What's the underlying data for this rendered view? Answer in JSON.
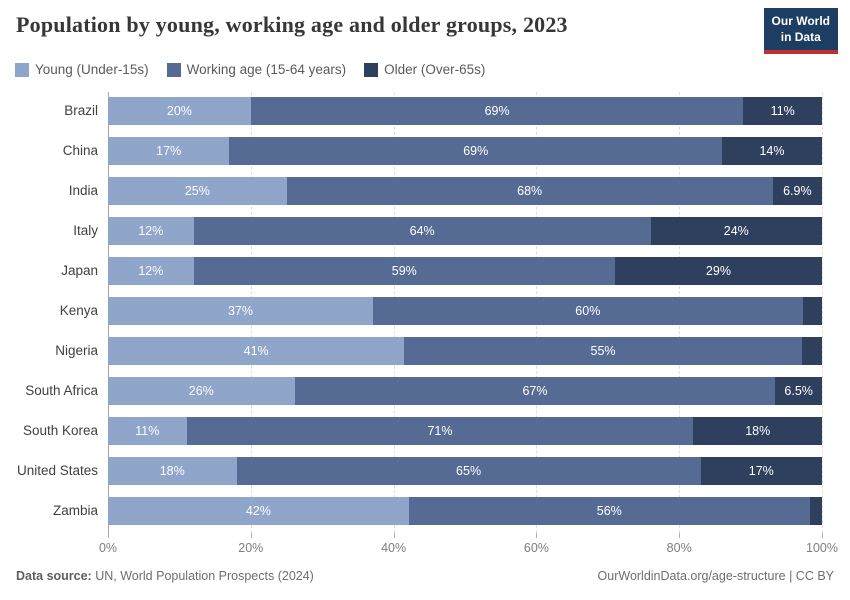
{
  "header": {
    "title": "Population by young, working age and older groups, 2023",
    "logo": {
      "line1": "Our World",
      "line2": "in Data"
    }
  },
  "legend": [
    {
      "key": "young",
      "label": "Young (Under-15s)",
      "color": "#8fa5c9"
    },
    {
      "key": "working",
      "label": "Working age (15-64 years)",
      "color": "#566b93"
    },
    {
      "key": "older",
      "label": "Older (Over-65s)",
      "color": "#2f3f5e"
    }
  ],
  "chart_data": {
    "type": "bar",
    "stacked": true,
    "orientation": "horizontal",
    "title": "Population by young, working age and older groups, 2023",
    "xlabel": "",
    "ylabel": "",
    "xlim": [
      0,
      100
    ],
    "grid": "dashed-vertical",
    "x_ticks": [
      0,
      20,
      40,
      60,
      80,
      100
    ],
    "x_tick_labels": [
      "0%",
      "20%",
      "40%",
      "60%",
      "80%",
      "100%"
    ],
    "categories": [
      "Brazil",
      "China",
      "India",
      "Italy",
      "Japan",
      "Kenya",
      "Nigeria",
      "South Africa",
      "South Korea",
      "United States",
      "Zambia"
    ],
    "series": [
      {
        "name": "Young (Under-15s)",
        "values": [
          20,
          17,
          25,
          12,
          12,
          37,
          41,
          26,
          11,
          18,
          42
        ]
      },
      {
        "name": "Working age (15-64 years)",
        "values": [
          69,
          69,
          68,
          64,
          59,
          60,
          55,
          67,
          71,
          65,
          56
        ]
      },
      {
        "name": "Older (Over-65s)",
        "values": [
          11,
          14,
          6.9,
          24,
          29,
          2.7,
          2.8,
          6.5,
          18,
          17,
          1.7
        ]
      }
    ],
    "rows": [
      {
        "country": "Brazil",
        "segments": [
          {
            "value": 20,
            "label": "20%"
          },
          {
            "value": 69,
            "label": "69%"
          },
          {
            "value": 11,
            "label": "11%"
          }
        ]
      },
      {
        "country": "China",
        "segments": [
          {
            "value": 17,
            "label": "17%"
          },
          {
            "value": 69,
            "label": "69%"
          },
          {
            "value": 14,
            "label": "14%"
          }
        ]
      },
      {
        "country": "India",
        "segments": [
          {
            "value": 25,
            "label": "25%"
          },
          {
            "value": 68,
            "label": "68%"
          },
          {
            "value": 6.9,
            "label": "6.9%"
          }
        ]
      },
      {
        "country": "Italy",
        "segments": [
          {
            "value": 12,
            "label": "12%"
          },
          {
            "value": 64,
            "label": "64%"
          },
          {
            "value": 24,
            "label": "24%"
          }
        ]
      },
      {
        "country": "Japan",
        "segments": [
          {
            "value": 12,
            "label": "12%"
          },
          {
            "value": 59,
            "label": "59%"
          },
          {
            "value": 29,
            "label": "29%"
          }
        ]
      },
      {
        "country": "Kenya",
        "segments": [
          {
            "value": 37,
            "label": "37%"
          },
          {
            "value": 60,
            "label": "60%"
          },
          {
            "value": 2.7,
            "label": ""
          }
        ]
      },
      {
        "country": "Nigeria",
        "segments": [
          {
            "value": 41,
            "label": "41%"
          },
          {
            "value": 55,
            "label": "55%"
          },
          {
            "value": 2.8,
            "label": ""
          }
        ]
      },
      {
        "country": "South Africa",
        "segments": [
          {
            "value": 26,
            "label": "26%"
          },
          {
            "value": 67,
            "label": "67%"
          },
          {
            "value": 6.5,
            "label": "6.5%"
          }
        ]
      },
      {
        "country": "South Korea",
        "segments": [
          {
            "value": 11,
            "label": "11%"
          },
          {
            "value": 71,
            "label": "71%"
          },
          {
            "value": 18,
            "label": "18%"
          }
        ]
      },
      {
        "country": "United States",
        "segments": [
          {
            "value": 18,
            "label": "18%"
          },
          {
            "value": 65,
            "label": "65%"
          },
          {
            "value": 17,
            "label": "17%"
          }
        ]
      },
      {
        "country": "Zambia",
        "segments": [
          {
            "value": 42,
            "label": "42%"
          },
          {
            "value": 56,
            "label": "56%"
          },
          {
            "value": 1.7,
            "label": ""
          }
        ]
      }
    ]
  },
  "footer": {
    "source_label": "Data source:",
    "source_text": "UN, World Population Prospects (2024)",
    "link": "OurWorldinData.org/age-structure",
    "separator": "|",
    "license": "CC BY"
  }
}
